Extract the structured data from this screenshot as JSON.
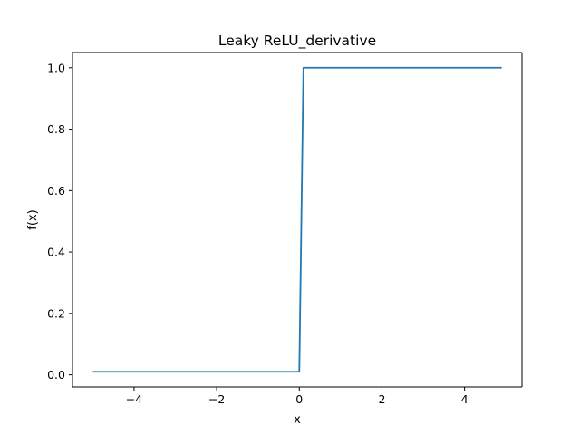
{
  "chart_data": {
    "type": "line",
    "title": "Leaky ReLU_derivative",
    "xlabel": "x",
    "ylabel": "f(x)",
    "xlim": [
      -5.49,
      5.39
    ],
    "ylim": [
      -0.0395,
      1.0495
    ],
    "xticks": [
      -4,
      -2,
      0,
      2,
      4
    ],
    "xtick_labels": [
      "−4",
      "−2",
      "0",
      "2",
      "4"
    ],
    "yticks": [
      0.0,
      0.2,
      0.4,
      0.6,
      0.8,
      1.0
    ],
    "ytick_labels": [
      "0.0",
      "0.2",
      "0.4",
      "0.6",
      "0.8",
      "1.0"
    ],
    "grid": false,
    "legend": false,
    "series": [
      {
        "color": "#1f77b4",
        "x": [
          -5.0,
          -4.0,
          -3.0,
          -2.0,
          -1.0,
          0.0,
          0.1,
          1.0,
          2.0,
          3.0,
          4.0,
          4.9
        ],
        "y": [
          0.01,
          0.01,
          0.01,
          0.01,
          0.01,
          0.01,
          1.0,
          1.0,
          1.0,
          1.0,
          1.0,
          1.0
        ]
      }
    ]
  }
}
